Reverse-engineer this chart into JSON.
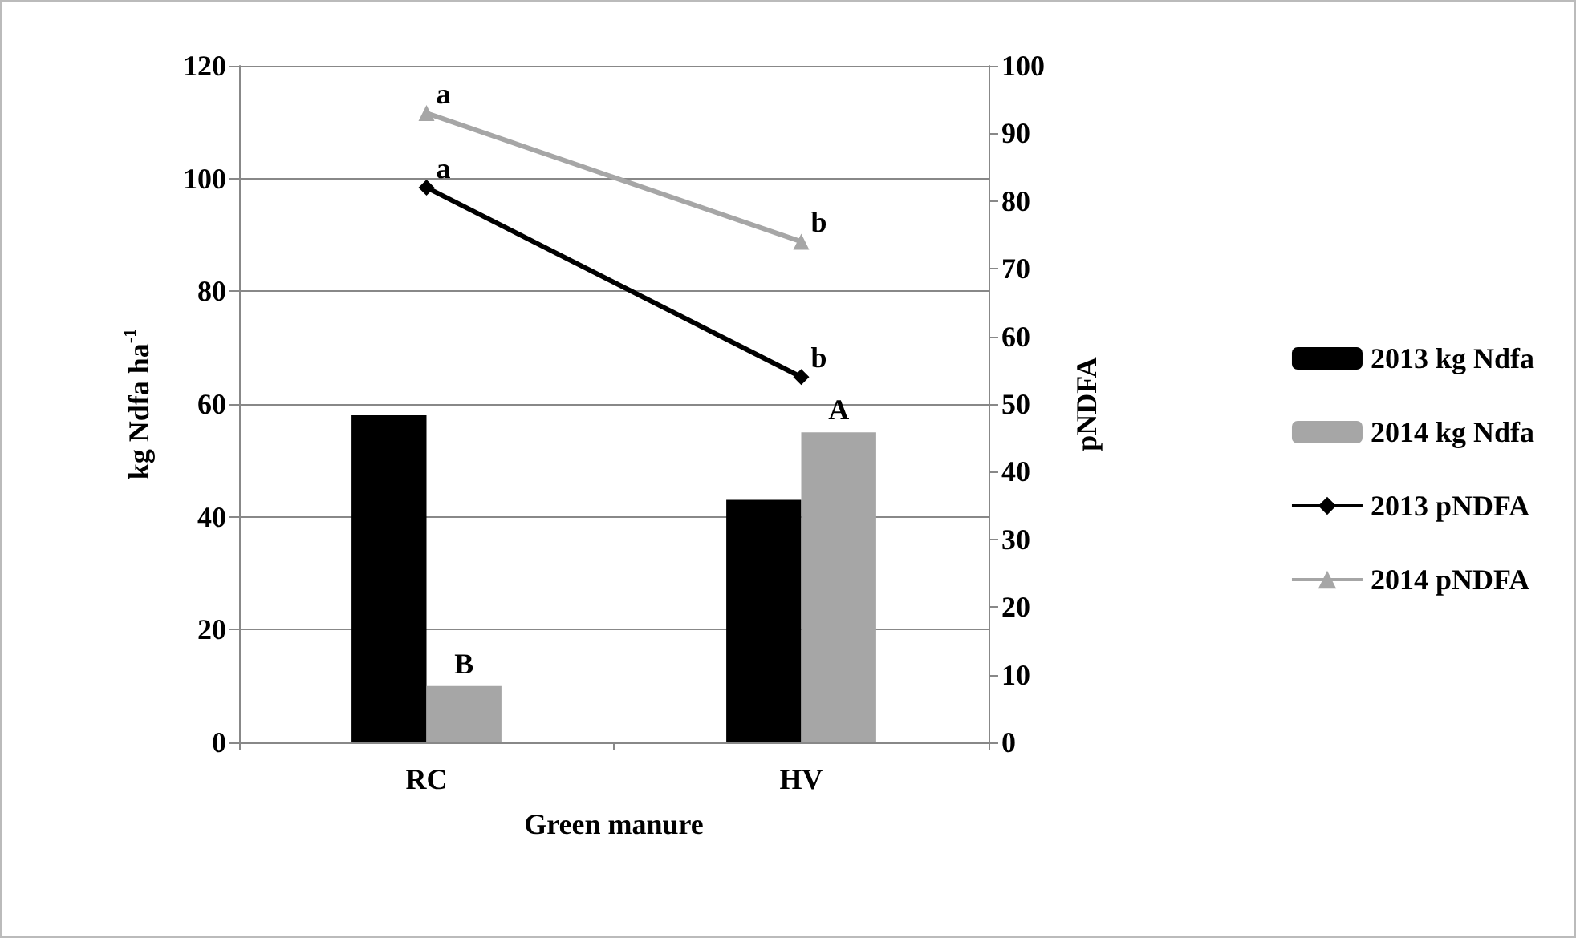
{
  "chart_data": {
    "type": "bar",
    "xlabel": "Green manure",
    "ylabel": "kg Ndfa ha$^{-1}$",
    "y2label": "pNDFA",
    "categories": [
      "RC",
      "HV"
    ],
    "series": [
      {
        "name": "2013 kg Ndfa",
        "color": "#000000",
        "values": [
          58,
          43
        ]
      },
      {
        "name": "2014 kg Ndfa",
        "color": "#a6a6a6",
        "values": [
          10,
          55
        ],
        "value_labels": [
          "B",
          "A"
        ]
      },
      {
        "name": "2013 pNDFA",
        "type": "line",
        "axis": "y2",
        "marker": "diamond",
        "color": "#000000",
        "values": [
          82,
          54
        ],
        "value_labels": [
          "a",
          "b"
        ]
      },
      {
        "name": "2014 pNDFA",
        "type": "line",
        "axis": "y2",
        "marker": "triangle",
        "color": "#a6a6a6",
        "values": [
          93,
          74
        ],
        "value_labels": [
          "a",
          "b"
        ]
      }
    ],
    "ylim": [
      0,
      120
    ],
    "yticks": [
      0,
      20,
      40,
      60,
      80,
      100,
      120
    ],
    "y2lim": [
      0,
      100
    ],
    "y2ticks": [
      0,
      10,
      20,
      30,
      40,
      50,
      60,
      70,
      80,
      90,
      100
    ],
    "grid": "y",
    "legend": "right"
  }
}
